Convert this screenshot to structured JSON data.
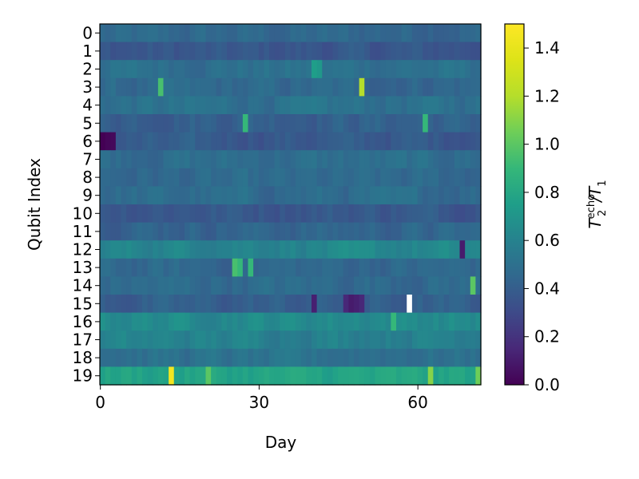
{
  "chart_data": {
    "type": "heatmap",
    "title": "",
    "xlabel": "Day",
    "ylabel": "Qubit Index",
    "x_ticks": [
      0,
      30,
      60
    ],
    "y_ticks": [
      0,
      1,
      2,
      3,
      4,
      5,
      6,
      7,
      8,
      9,
      10,
      11,
      12,
      13,
      14,
      15,
      16,
      17,
      18,
      19
    ],
    "xlim": [
      0,
      72
    ],
    "ylim": [
      0,
      19
    ],
    "colorbar": {
      "label_main": "T",
      "label_sup": "echo",
      "label_sub1": "2",
      "label_div": "/T",
      "label_sub2": "1",
      "range": [
        0.0,
        1.5
      ],
      "ticks": [
        "0.0",
        "0.2",
        "0.4",
        "0.6",
        "0.8",
        "1.0",
        "1.2",
        "1.4"
      ],
      "colormap": "viridis"
    },
    "n_days": 72,
    "n_qubits": 20,
    "row_baseline_values": [
      0.45,
      0.36,
      0.5,
      0.45,
      0.5,
      0.42,
      0.38,
      0.48,
      0.45,
      0.47,
      0.38,
      0.44,
      0.62,
      0.45,
      0.47,
      0.4,
      0.65,
      0.6,
      0.5,
      0.78
    ],
    "notable_cells": [
      {
        "qubit": 6,
        "day": 0,
        "value": 0.0
      },
      {
        "qubit": 6,
        "day": 1,
        "value": 0.02
      },
      {
        "qubit": 6,
        "day": 2,
        "value": 0.03
      },
      {
        "qubit": 3,
        "day": 11,
        "value": 0.95
      },
      {
        "qubit": 3,
        "day": 49,
        "value": 1.2
      },
      {
        "qubit": 2,
        "day": 40,
        "value": 0.75
      },
      {
        "qubit": 2,
        "day": 41,
        "value": 0.72
      },
      {
        "qubit": 5,
        "day": 27,
        "value": 0.9
      },
      {
        "qubit": 5,
        "day": 61,
        "value": 0.9
      },
      {
        "qubit": 12,
        "day": 68,
        "value": 0.1
      },
      {
        "qubit": 13,
        "day": 25,
        "value": 0.95
      },
      {
        "qubit": 13,
        "day": 26,
        "value": 0.9
      },
      {
        "qubit": 13,
        "day": 28,
        "value": 0.9
      },
      {
        "qubit": 14,
        "day": 70,
        "value": 1.0
      },
      {
        "qubit": 15,
        "day": 40,
        "value": 0.12
      },
      {
        "qubit": 15,
        "day": 46,
        "value": 0.15
      },
      {
        "qubit": 15,
        "day": 47,
        "value": 0.1
      },
      {
        "qubit": 15,
        "day": 48,
        "value": 0.12
      },
      {
        "qubit": 15,
        "day": 49,
        "value": 0.15
      },
      {
        "qubit": 15,
        "day": 58,
        "value": null
      },
      {
        "qubit": 16,
        "day": 55,
        "value": 0.9
      },
      {
        "qubit": 19,
        "day": 13,
        "value": 1.45
      },
      {
        "qubit": 19,
        "day": 20,
        "value": 1.0
      },
      {
        "qubit": 19,
        "day": 62,
        "value": 1.1
      },
      {
        "qubit": 19,
        "day": 71,
        "value": 1.05
      }
    ]
  }
}
